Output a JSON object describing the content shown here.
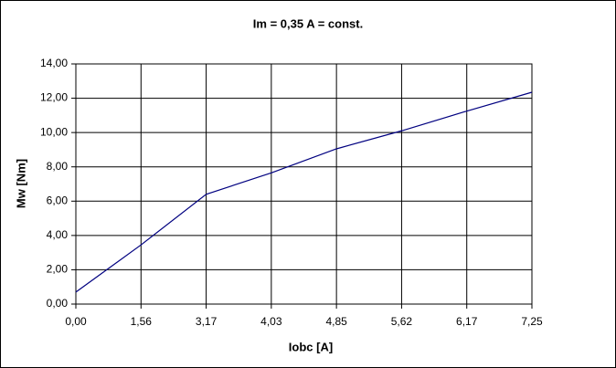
{
  "chart_data": {
    "type": "line",
    "title": "Im = 0,35 A = const.",
    "x_label": "Iobc [A]",
    "y_label": "Mw [Nm]",
    "categories": [
      "0,00",
      "1,56",
      "3,17",
      "4,03",
      "4,85",
      "5,62",
      "6,17",
      "7,25"
    ],
    "series": [
      {
        "color": "#000080",
        "values": [
          0.7,
          3.45,
          6.4,
          7.65,
          9.05,
          10.1,
          11.25,
          12.35
        ]
      }
    ],
    "ylim": [
      0,
      14
    ],
    "yticks": [
      {
        "value": 0,
        "label": "0,00"
      },
      {
        "value": 2,
        "label": "2,00"
      },
      {
        "value": 4,
        "label": "4,00"
      },
      {
        "value": 6,
        "label": "6,00"
      },
      {
        "value": 8,
        "label": "8,00"
      },
      {
        "value": 10,
        "label": "10,00"
      },
      {
        "value": 12,
        "label": "12,00"
      },
      {
        "value": 14,
        "label": "14,00"
      }
    ],
    "grid": true
  }
}
